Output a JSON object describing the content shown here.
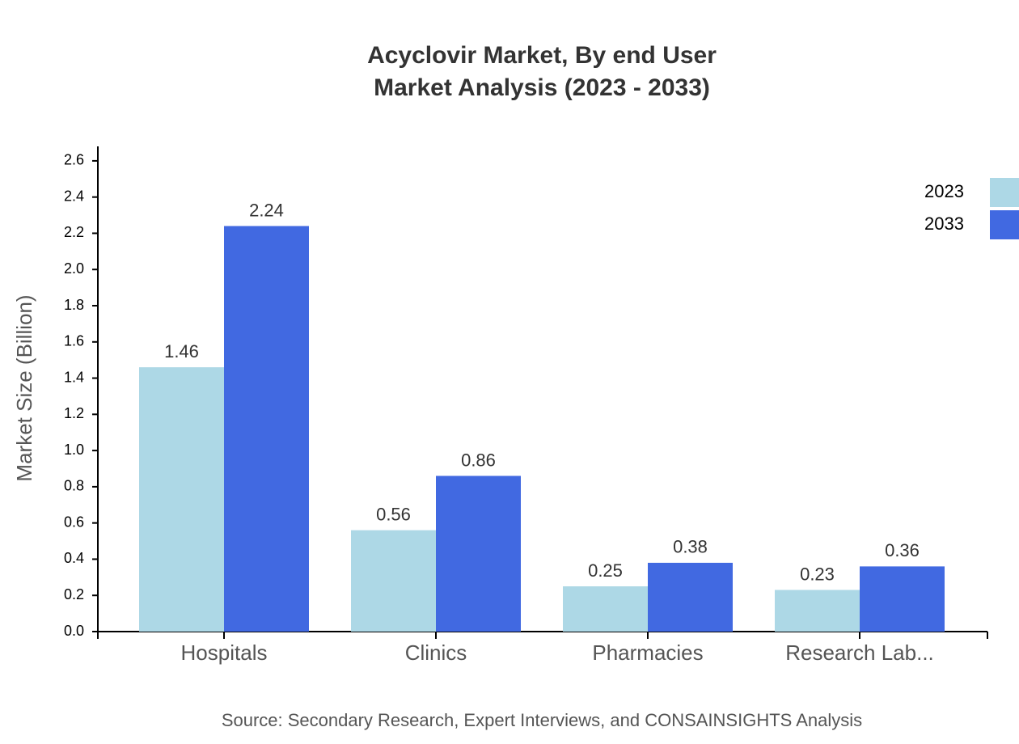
{
  "chart_data": {
    "type": "bar",
    "title": "Acyclovir Market, By end User",
    "subtitle": "Market Analysis (2023 - 2033)",
    "y_label": "Market Size (Billion)",
    "source": "Source: Secondary Research, Expert Interviews, and CONSAINSIGHTS Analysis",
    "categories": [
      "Hospitals",
      "Clinics",
      "Pharmacies",
      "Research Lab..."
    ],
    "series": [
      {
        "name": "2023",
        "color": "#add8e6",
        "values": [
          1.46,
          0.56,
          0.25,
          0.23
        ]
      },
      {
        "name": "2033",
        "color": "#4169e1",
        "values": [
          2.24,
          0.86,
          0.38,
          0.36
        ]
      }
    ],
    "ylim": [
      0,
      2.68
    ],
    "yticks": [
      {
        "value": 0,
        "label": "0.0"
      },
      0.2,
      0.4,
      0.6,
      0.8,
      {
        "value": 1,
        "label": "1.0"
      },
      1.2,
      1.4,
      1.6,
      1.8,
      {
        "value": 2,
        "label": "2.0"
      },
      2.2,
      2.4,
      2.6
    ],
    "legend": "top-right",
    "grid": false
  }
}
